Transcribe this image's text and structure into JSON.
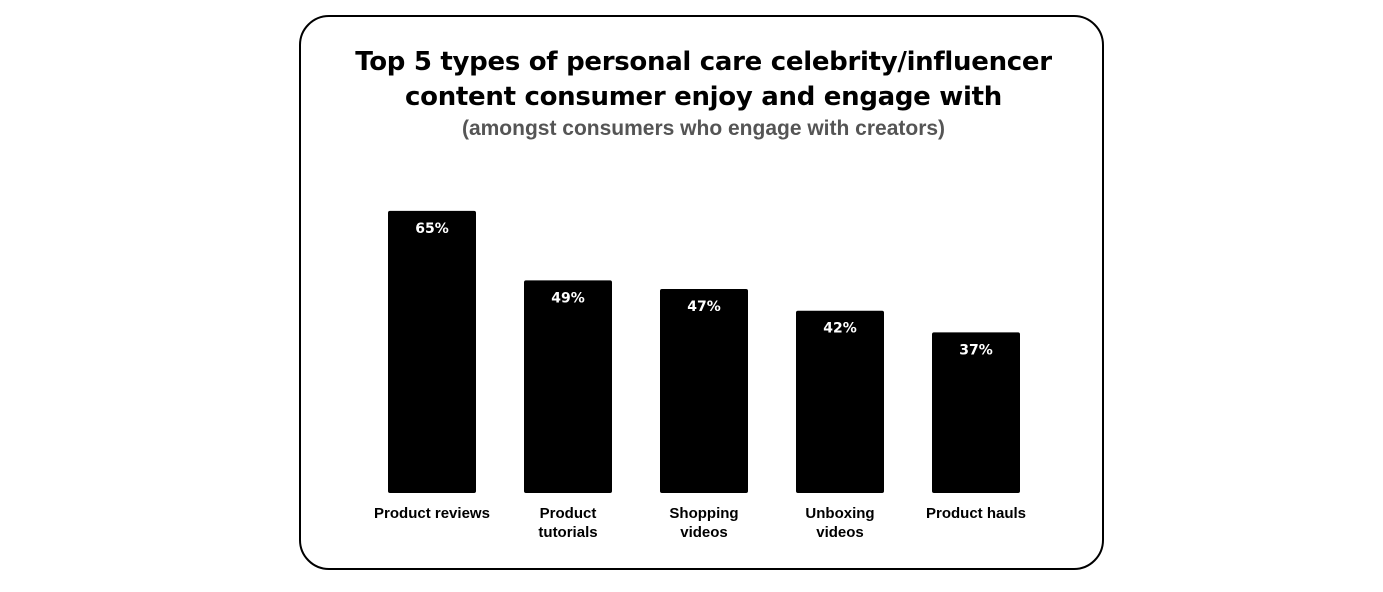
{
  "chart_data": {
    "type": "bar",
    "title_lines": [
      "Top 5 types of personal care celebrity/influencer",
      "content consumer enjoy and engage with"
    ],
    "subtitle": "(amongst consumers who engage with creators)",
    "categories": [
      [
        "Product reviews"
      ],
      [
        "Product",
        "tutorials"
      ],
      [
        "Shopping",
        "videos"
      ],
      [
        "Unboxing",
        "videos"
      ],
      [
        "Product hauls"
      ]
    ],
    "values": [
      65,
      49,
      47,
      42,
      37
    ],
    "data_labels": [
      "65%",
      "49%",
      "47%",
      "42%",
      "37%"
    ],
    "unit": "%",
    "ylim": [
      0,
      100
    ],
    "grid": false,
    "legend": "none",
    "bar_color": "#000000",
    "label_color": "#ffffff"
  }
}
